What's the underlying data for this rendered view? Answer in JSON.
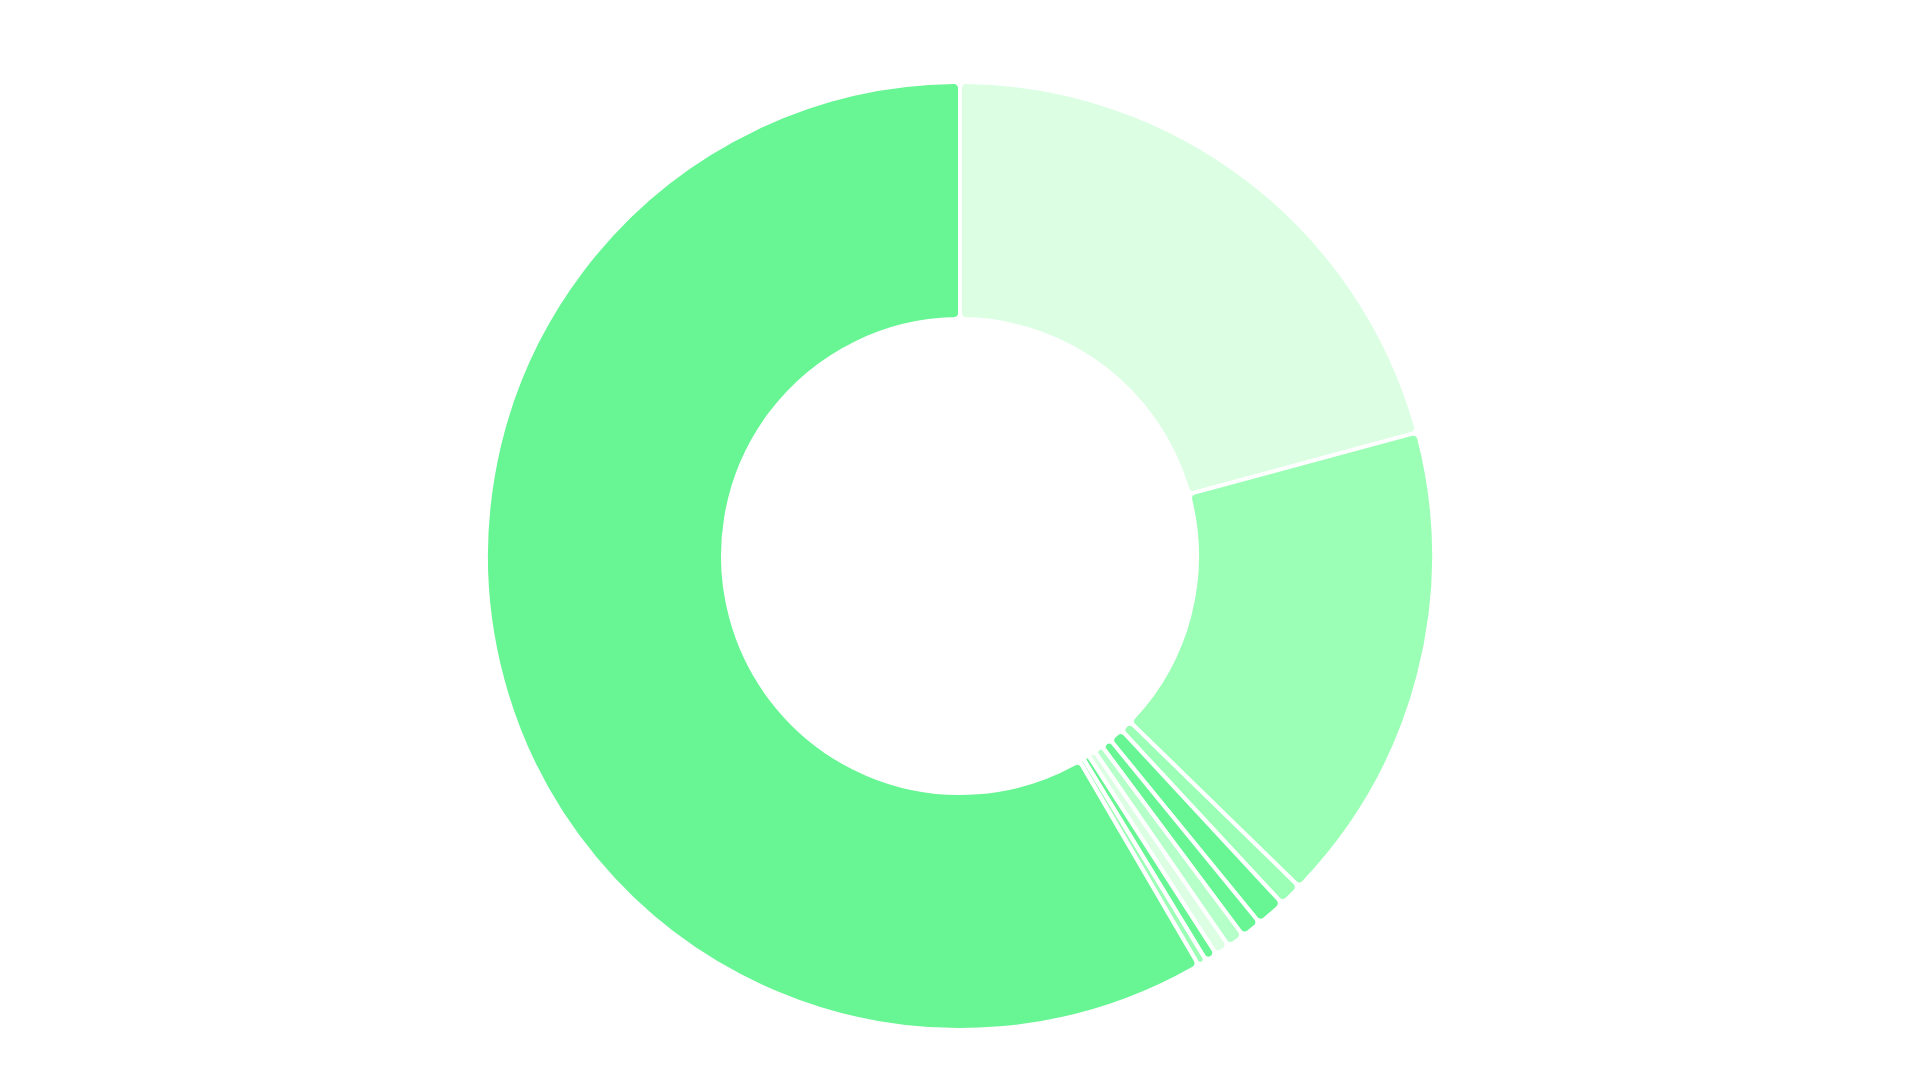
{
  "chart_data": {
    "type": "donut",
    "categories": [
      null,
      null,
      null,
      null,
      null,
      null,
      null,
      null,
      null,
      null
    ],
    "values": [
      20.8,
      16.5,
      0.8,
      1.0,
      0.7,
      0.6,
      0.5,
      0.4,
      0.3,
      58.4
    ],
    "colors": [
      "#dcffe4",
      "#9bffb6",
      "#9bffb6",
      "#68f594",
      "#68f594",
      "#b5ffc8",
      "#dcffe4",
      "#68f594",
      "#9bffb6",
      "#68f594"
    ],
    "legend": false
  }
}
